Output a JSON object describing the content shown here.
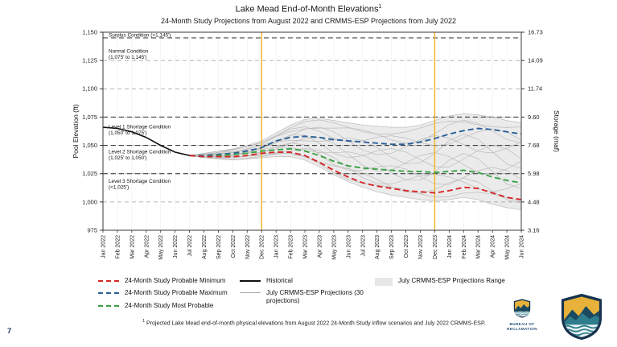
{
  "slide": {
    "page_number": "7"
  },
  "header": {
    "title": "Lake Mead End-of-Month Elevations",
    "title_superscript": "1",
    "subtitle": "24-Month Study Projections from August 2022 and CRMMS-ESP Projections from July 2022"
  },
  "footnote": {
    "superscript": "1",
    "text": "Projected Lake Mead end-of-month physical elevations from August 2022 24-Month Study inflow scenarios and July 2022 CRMMS-ESP."
  },
  "logos": {
    "seal_icon": "bureau-of-reclamation-seal",
    "seal_line1": "BUREAU OF",
    "seal_line2": "RECLAMATION",
    "shield_icon": "reclamation-shield-logo"
  },
  "chart_data": {
    "type": "line",
    "title": "Lake Mead End-of-Month Elevations",
    "ylabel_left": "Pool Elevation (ft)",
    "ylabel_right": "Storage (maf)",
    "ylim": [
      975,
      1150
    ],
    "grid": "dashed-horizontal",
    "y_ticks": [
      {
        "elevation": 1150,
        "left_label": "1,150",
        "right_label": "16.73"
      },
      {
        "elevation": 1125,
        "left_label": "1,125",
        "right_label": "14.09"
      },
      {
        "elevation": 1100,
        "left_label": "1,100",
        "right_label": "11.74"
      },
      {
        "elevation": 1075,
        "left_label": "1,075",
        "right_label": "9.60"
      },
      {
        "elevation": 1050,
        "left_label": "1,050",
        "right_label": "7.68"
      },
      {
        "elevation": 1025,
        "left_label": "1,025",
        "right_label": "5.98"
      },
      {
        "elevation": 1000,
        "left_label": "1,000",
        "right_label": "4.48"
      },
      {
        "elevation": 975,
        "left_label": "975",
        "right_label": "3.16"
      }
    ],
    "categories": [
      "Jan 2022",
      "Feb 2022",
      "Mar 2022",
      "Apr 2022",
      "May 2022",
      "Jun 2022",
      "Jul 2022",
      "Aug 2022",
      "Sep 2022",
      "Oct 2022",
      "Nov 2022",
      "Dec 2022",
      "Jan 2023",
      "Feb 2023",
      "Mar 2023",
      "Apr 2023",
      "May 2023",
      "Jun 2023",
      "Jul 2023",
      "Aug 2023",
      "Sep 2023",
      "Oct 2023",
      "Nov 2023",
      "Dec 2023",
      "Jan 2024",
      "Feb 2024",
      "Mar 2024",
      "Apr 2024",
      "May 2024",
      "Jun 2024"
    ],
    "vertical_marker_lines": {
      "color": "#f2b72e",
      "at": [
        "Dec 2022",
        "Dec 2023"
      ]
    },
    "operating_zones": {
      "threshold_elevations": [
        1145,
        1075,
        1050,
        1025
      ],
      "labels": [
        {
          "lines": [
            "Surplus Condition (>1,145')"
          ],
          "y": 1146
        },
        {
          "lines": [
            "Normal Condition",
            "(1,075' to 1,145')"
          ],
          "y": 1132
        },
        {
          "lines": [
            "Level 1 Shortage Condition",
            "(1,050' to 1,075')"
          ],
          "y": 1065
        },
        {
          "lines": [
            "Level 2 Shortage Condition",
            "(1,025' to 1,050')"
          ],
          "y": 1043
        },
        {
          "lines": [
            "Level 3 Shortage Condition",
            "(<1,025')"
          ],
          "y": 1017
        }
      ]
    },
    "series": [
      {
        "name": "Historical",
        "color": "#111111",
        "dash": "solid",
        "start": 0,
        "values": [
          1066,
          1065,
          1062,
          1057,
          1050,
          1044,
          1041
        ]
      },
      {
        "name": "24-Month Study Probable Maximum",
        "color": "#2a6099",
        "dash": "dashed",
        "start": 6,
        "values": [
          1041,
          1041,
          1042,
          1043,
          1045,
          1048,
          1054,
          1057,
          1058,
          1057,
          1055,
          1054,
          1053,
          1052,
          1051,
          1051,
          1053,
          1056,
          1060,
          1063,
          1065,
          1064,
          1062,
          1060
        ]
      },
      {
        "name": "24-Month Study Most Probable",
        "color": "#3aa245",
        "dash": "dashed",
        "start": 6,
        "values": [
          1041,
          1040,
          1041,
          1042,
          1043,
          1045,
          1046,
          1047,
          1045,
          1041,
          1036,
          1032,
          1030,
          1029,
          1028,
          1027,
          1027,
          1026,
          1027,
          1028,
          1026,
          1022,
          1019,
          1017
        ]
      },
      {
        "name": "24-Month Study Probable Minimum",
        "color": "#d62728",
        "dash": "dashed",
        "start": 6,
        "values": [
          1041,
          1040,
          1040,
          1040,
          1041,
          1043,
          1044,
          1044,
          1041,
          1035,
          1028,
          1022,
          1017,
          1014,
          1012,
          1010,
          1009,
          1008,
          1010,
          1013,
          1012,
          1008,
          1004,
          1002
        ]
      }
    ],
    "esp_projections": {
      "name": "July CRMMS-ESP Projections",
      "count": 30,
      "line_color": "#ababab",
      "range_name": "July CRMMS-ESP Projections Range",
      "range_fill": "#e7e7e7",
      "start": 6,
      "range_min": [
        1041,
        1039,
        1038,
        1037,
        1038,
        1039,
        1040,
        1040,
        1037,
        1031,
        1024,
        1018,
        1013,
        1009,
        1006,
        1004,
        1002,
        1001,
        1002,
        1004,
        1002,
        998,
        995,
        993
      ],
      "range_max": [
        1041,
        1043,
        1045,
        1047,
        1050,
        1054,
        1061,
        1068,
        1073,
        1074,
        1072,
        1070,
        1068,
        1067,
        1066,
        1066,
        1068,
        1072,
        1076,
        1078,
        1077,
        1075,
        1072,
        1070
      ]
    }
  },
  "legend": {
    "columns": [
      {
        "items": [
          {
            "swatch": "dash",
            "color": "#d62728",
            "label": "24-Month Study Probable Minimum"
          },
          {
            "swatch": "dash",
            "color": "#2a6099",
            "label": "24-Month Study Probable Maximum"
          },
          {
            "swatch": "dash",
            "color": "#3aa245",
            "label": "24-Month Study Most Probable"
          }
        ]
      },
      {
        "items": [
          {
            "swatch": "line",
            "color": "#111111",
            "label": "Historical"
          },
          {
            "swatch": "thinline",
            "color": "#ababab",
            "label": "July CRMMS-ESP Projections (30 projections)"
          }
        ]
      },
      {
        "items": [
          {
            "swatch": "box",
            "color": "#e7e7e7",
            "label": "July CRMMS-ESP Projections Range"
          }
        ]
      }
    ]
  }
}
